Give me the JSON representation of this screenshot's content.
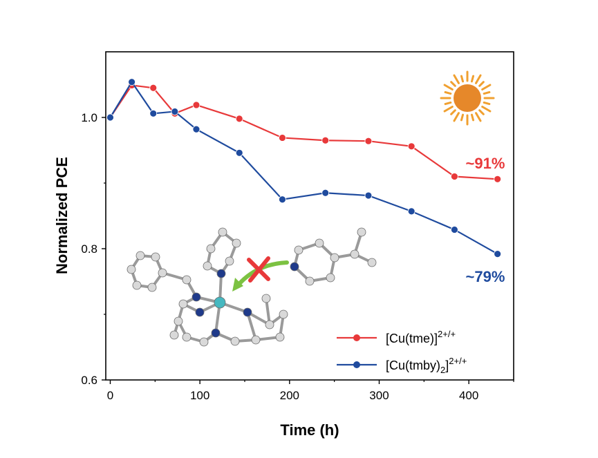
{
  "chart_data": {
    "type": "line",
    "xlabel": "Time (h)",
    "ylabel": "Normalized PCE",
    "xlim": [
      -5,
      450
    ],
    "ylim": [
      0.6,
      1.1
    ],
    "x_ticks": [
      "0",
      "100",
      "200",
      "300",
      "400"
    ],
    "y_ticks": [
      "0.6",
      "0.8",
      "1.0"
    ],
    "grid": false,
    "legend_position": "bottom-right",
    "series": [
      {
        "name": "[Cu(tme)]",
        "name_superscript": "2+/+",
        "color": "#e8393a",
        "x": [
          0,
          24,
          48,
          72,
          96,
          144,
          192,
          240,
          288,
          336,
          384,
          432
        ],
        "y": [
          1.0,
          1.049,
          1.045,
          1.006,
          1.019,
          0.998,
          0.969,
          0.965,
          0.964,
          0.956,
          0.91,
          0.906
        ]
      },
      {
        "name": "[Cu(tmby)",
        "name_subscript": "2",
        "name_close": "]",
        "name_superscript": "2+/+",
        "color": "#1f4b9e",
        "x": [
          0,
          24,
          48,
          72,
          96,
          144,
          192,
          240,
          288,
          336,
          384,
          432
        ],
        "y": [
          1.0,
          1.054,
          1.006,
          1.009,
          0.982,
          0.946,
          0.875,
          0.885,
          0.881,
          0.857,
          0.829,
          0.792
        ]
      }
    ],
    "annotations": [
      {
        "text": "~91%",
        "color": "#e8393a"
      },
      {
        "text": "~79%",
        "color": "#1f4b9e"
      }
    ],
    "decorations": [
      "sun-icon",
      "molecular-structure-illustration"
    ]
  }
}
